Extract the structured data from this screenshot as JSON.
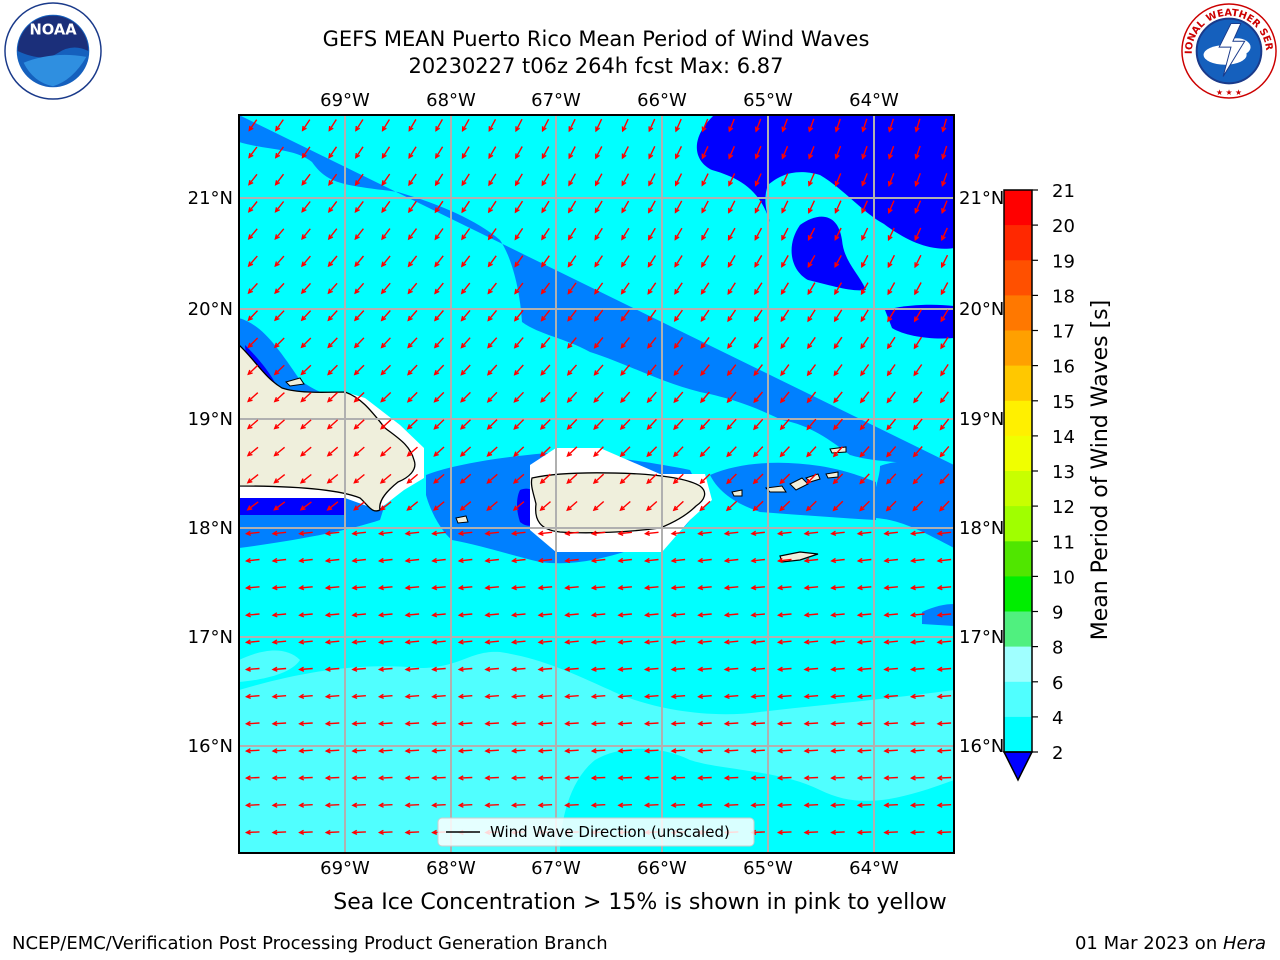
{
  "header": {
    "title_line1": "GEFS MEAN Puerto Rico Mean Period of Wind Waves",
    "title_line2": "20230227 t06z 264h fcst   Max: 6.87"
  },
  "logos": {
    "left": {
      "icon": "noaa-logo",
      "text": "NOAA"
    },
    "right": {
      "icon": "national-weather-service-logo",
      "text": "NATIONAL WEATHER SERVICE"
    }
  },
  "map": {
    "lon_labels": [
      "69°W",
      "68°W",
      "67°W",
      "66°W",
      "65°W",
      "64°W"
    ],
    "lat_labels": [
      "21°N",
      "20°N",
      "19°N",
      "18°N",
      "17°N",
      "16°N"
    ],
    "legend_label": "Wind Wave Direction (unscaled)",
    "arrow_color": "#ff0000",
    "land_color": "#efefdc",
    "wave_direction": "from east-northeast (arrows point west-southwest)"
  },
  "colorbar": {
    "label": "Mean Period of Wind Waves [s]",
    "ticks": [
      "21",
      "20",
      "19",
      "18",
      "17",
      "16",
      "15",
      "14",
      "13",
      "12",
      "11",
      "10",
      "9",
      "8",
      "6",
      "4",
      "2"
    ],
    "colors": [
      "#ff0000",
      "#ff2800",
      "#ff5000",
      "#ff7800",
      "#ffa000",
      "#ffc800",
      "#fff000",
      "#f0ff00",
      "#c8ff00",
      "#a0ff00",
      "#50e600",
      "#00ee00",
      "#00e000",
      "#50f07f",
      "#a0ffff",
      "#50ffff",
      "#00ffff",
      "#0080ff"
    ],
    "extend_color": "#0000ff"
  },
  "footer": {
    "note": "Sea Ice Concentration > 15% is shown in pink to yellow",
    "credit_left": "NCEP/EMC/Verification Post Processing Product Generation Branch",
    "credit_date": "01 Mar 2023 on ",
    "credit_host": "Hera"
  }
}
